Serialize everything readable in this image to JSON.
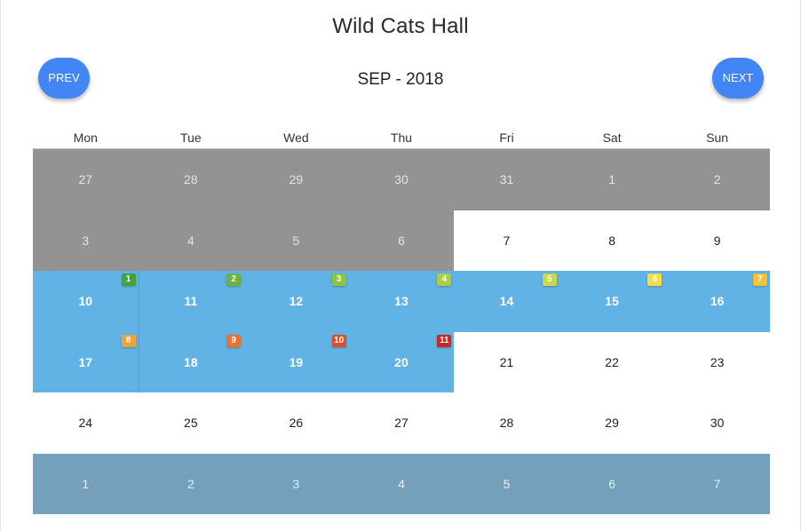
{
  "calendar": {
    "title": "Wild Cats Hall",
    "month_label": "SEP - 2018",
    "prev_label": "PREV",
    "next_label": "NEXT",
    "weekdays": [
      "Mon",
      "Tue",
      "Wed",
      "Thu",
      "Fri",
      "Sat",
      "Sun"
    ],
    "colors": {
      "accent": "#4285f4",
      "previous_month": "#939393",
      "next_month": "#74a0bb",
      "booked": "#62b3e5"
    },
    "weeks": [
      [
        {
          "day": "27",
          "type": "prev-month"
        },
        {
          "day": "28",
          "type": "prev-month"
        },
        {
          "day": "29",
          "type": "prev-month"
        },
        {
          "day": "30",
          "type": "prev-month"
        },
        {
          "day": "31",
          "type": "prev-month"
        },
        {
          "day": "1",
          "type": "prev-month"
        },
        {
          "day": "2",
          "type": "prev-month"
        }
      ],
      [
        {
          "day": "3",
          "type": "prev-month"
        },
        {
          "day": "4",
          "type": "prev-month"
        },
        {
          "day": "5",
          "type": "prev-month"
        },
        {
          "day": "6",
          "type": "prev-month"
        },
        {
          "day": "7",
          "type": "current"
        },
        {
          "day": "8",
          "type": "current"
        },
        {
          "day": "9",
          "type": "current"
        }
      ],
      [
        {
          "day": "10",
          "type": "booked",
          "badge": "1",
          "badge_color": "#3fa53a"
        },
        {
          "day": "11",
          "type": "booked",
          "badge": "2",
          "badge_color": "#6db33f",
          "divider": true
        },
        {
          "day": "12",
          "type": "booked",
          "badge": "3",
          "badge_color": "#8cc43f"
        },
        {
          "day": "13",
          "type": "booked",
          "badge": "4",
          "badge_color": "#a8cf45"
        },
        {
          "day": "14",
          "type": "booked",
          "badge": "5",
          "badge_color": "#c9d94a"
        },
        {
          "day": "15",
          "type": "booked",
          "badge": "6",
          "badge_color": "#f5dd46"
        },
        {
          "day": "16",
          "type": "booked",
          "badge": "7",
          "badge_color": "#f2c03a"
        }
      ],
      [
        {
          "day": "17",
          "type": "booked",
          "badge": "8",
          "badge_color": "#f0a23b"
        },
        {
          "day": "18",
          "type": "booked",
          "badge": "9",
          "badge_color": "#e6732f",
          "divider": true
        },
        {
          "day": "19",
          "type": "booked",
          "badge": "10",
          "badge_color": "#d9502c"
        },
        {
          "day": "20",
          "type": "booked",
          "badge": "11",
          "badge_color": "#c62828"
        },
        {
          "day": "21",
          "type": "current"
        },
        {
          "day": "22",
          "type": "current"
        },
        {
          "day": "23",
          "type": "current"
        }
      ],
      [
        {
          "day": "24",
          "type": "current"
        },
        {
          "day": "25",
          "type": "current"
        },
        {
          "day": "26",
          "type": "current"
        },
        {
          "day": "27",
          "type": "current"
        },
        {
          "day": "28",
          "type": "current"
        },
        {
          "day": "29",
          "type": "current"
        },
        {
          "day": "30",
          "type": "current"
        }
      ],
      [
        {
          "day": "1",
          "type": "next-month"
        },
        {
          "day": "2",
          "type": "next-month"
        },
        {
          "day": "3",
          "type": "next-month"
        },
        {
          "day": "4",
          "type": "next-month"
        },
        {
          "day": "5",
          "type": "next-month"
        },
        {
          "day": "6",
          "type": "next-month"
        },
        {
          "day": "7",
          "type": "next-month"
        }
      ]
    ]
  }
}
